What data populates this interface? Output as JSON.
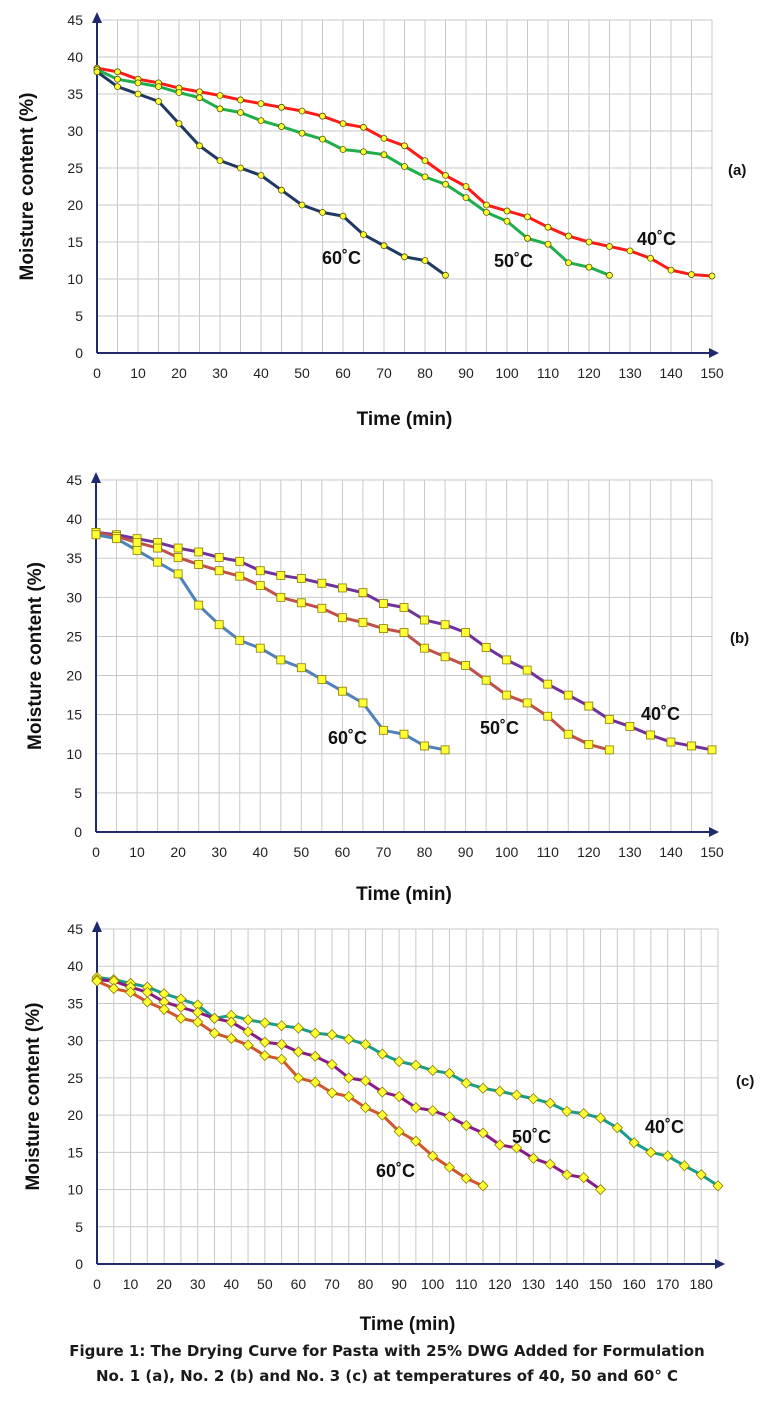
{
  "caption": {
    "line1": "Figure 1: The Drying Curve for Pasta with 25% DWG Added for Formulation",
    "line2": "No. 1 (a), No. 2 (b) and No. 3 (c) at temperatures of 40, 50 and 60° C"
  },
  "chart_data": [
    {
      "type": "line",
      "panel_label": "(a)",
      "xlabel": "Time (min)",
      "ylabel": "Moisture content (%)",
      "xlim": [
        0,
        150
      ],
      "ylim": [
        0,
        45
      ],
      "xticks": [
        0,
        10,
        20,
        30,
        40,
        50,
        60,
        70,
        80,
        90,
        100,
        110,
        120,
        130,
        140,
        150
      ],
      "yticks": [
        0,
        5,
        10,
        15,
        20,
        25,
        30,
        35,
        40,
        45
      ],
      "grid": true,
      "marker": "circle",
      "series": [
        {
          "name": "40˚C",
          "color": "#ff1a1a",
          "x": [
            0,
            5,
            10,
            15,
            20,
            25,
            30,
            35,
            40,
            45,
            50,
            55,
            60,
            65,
            70,
            75,
            80,
            85,
            90,
            95,
            100,
            105,
            110,
            115,
            120,
            125,
            130,
            135,
            140,
            145,
            150
          ],
          "y": [
            38.5,
            38,
            37,
            36.5,
            35.8,
            35.3,
            34.8,
            34.2,
            33.7,
            33.2,
            32.7,
            32,
            31,
            30.5,
            29,
            28,
            26,
            24,
            22.5,
            20,
            19.2,
            18.4,
            17,
            15.8,
            15,
            14.4,
            13.8,
            12.8,
            11.2,
            10.6,
            10.4
          ]
        },
        {
          "name": "50˚C",
          "color": "#1fae4b",
          "x": [
            0,
            5,
            10,
            15,
            20,
            25,
            30,
            35,
            40,
            45,
            50,
            55,
            60,
            65,
            70,
            75,
            80,
            85,
            90,
            95,
            100,
            105,
            110,
            115,
            120,
            125
          ],
          "y": [
            38.3,
            37,
            36.5,
            36,
            35.2,
            34.5,
            33,
            32.5,
            31.4,
            30.6,
            29.7,
            28.9,
            27.5,
            27.2,
            26.8,
            25.2,
            23.8,
            22.8,
            21,
            19,
            17.8,
            15.5,
            14.7,
            12.2,
            11.6,
            10.5
          ]
        },
        {
          "name": "60˚C",
          "color": "#1f3864",
          "x": [
            0,
            5,
            10,
            15,
            20,
            25,
            30,
            35,
            40,
            45,
            50,
            55,
            60,
            65,
            70,
            75,
            80,
            85
          ],
          "y": [
            38,
            36,
            35,
            34,
            31,
            28,
            26,
            25,
            24,
            22,
            20,
            19,
            18.5,
            16,
            14.5,
            13,
            12.5,
            10.5
          ]
        }
      ]
    },
    {
      "type": "line",
      "panel_label": "(b)",
      "xlabel": "Time (min)",
      "ylabel": "Moisture content (%)",
      "xlim": [
        0,
        150
      ],
      "ylim": [
        0,
        45
      ],
      "xticks": [
        0,
        10,
        20,
        30,
        40,
        50,
        60,
        70,
        80,
        90,
        100,
        110,
        120,
        130,
        140,
        150
      ],
      "yticks": [
        0,
        5,
        10,
        15,
        20,
        25,
        30,
        35,
        40,
        45
      ],
      "grid": true,
      "marker": "square",
      "series": [
        {
          "name": "40˚C",
          "color": "#7030a0",
          "x": [
            0,
            5,
            10,
            15,
            20,
            25,
            30,
            35,
            40,
            45,
            50,
            55,
            60,
            65,
            70,
            75,
            80,
            85,
            90,
            95,
            100,
            105,
            110,
            115,
            120,
            125,
            130,
            135,
            140,
            145,
            150
          ],
          "y": [
            38.3,
            38,
            37.5,
            37,
            36.3,
            35.8,
            35.1,
            34.6,
            33.4,
            32.8,
            32.4,
            31.8,
            31.2,
            30.6,
            29.2,
            28.7,
            27.1,
            26.5,
            25.5,
            23.6,
            22,
            20.7,
            18.9,
            17.5,
            16.1,
            14.4,
            13.5,
            12.4,
            11.5,
            11,
            10.5
          ]
        },
        {
          "name": "50˚C",
          "color": "#c0504d",
          "x": [
            0,
            5,
            10,
            15,
            20,
            25,
            30,
            35,
            40,
            45,
            50,
            55,
            60,
            65,
            70,
            75,
            80,
            85,
            90,
            95,
            100,
            105,
            110,
            115,
            120,
            125
          ],
          "y": [
            38.3,
            37.8,
            37,
            36.3,
            35.1,
            34.2,
            33.4,
            32.7,
            31.5,
            30,
            29.3,
            28.6,
            27.4,
            26.8,
            26,
            25.5,
            23.5,
            22.4,
            21.3,
            19.4,
            17.5,
            16.5,
            14.8,
            12.5,
            11.2,
            10.5
          ]
        },
        {
          "name": "60˚C",
          "color": "#4f81bd",
          "x": [
            0,
            5,
            10,
            15,
            20,
            25,
            30,
            35,
            40,
            45,
            50,
            55,
            60,
            65,
            70,
            75,
            80,
            85
          ],
          "y": [
            38,
            37.5,
            36,
            34.5,
            33,
            29,
            26.5,
            24.5,
            23.5,
            22,
            21,
            19.5,
            18,
            16.5,
            13,
            12.5,
            11,
            10.5
          ]
        }
      ]
    },
    {
      "type": "line",
      "panel_label": "(c)",
      "xlabel": "Time (min)",
      "ylabel": "Moisture content (%)",
      "xlim": [
        0,
        185
      ],
      "ylim": [
        0,
        45
      ],
      "xticks": [
        0,
        10,
        20,
        30,
        40,
        50,
        60,
        70,
        80,
        90,
        100,
        110,
        120,
        130,
        140,
        150,
        160,
        170,
        180
      ],
      "yticks": [
        0,
        5,
        10,
        15,
        20,
        25,
        30,
        35,
        40,
        45
      ],
      "grid": true,
      "marker": "diamond",
      "series": [
        {
          "name": "40˚C",
          "color": "#1a9c8c",
          "x": [
            0,
            5,
            10,
            15,
            20,
            25,
            30,
            35,
            40,
            45,
            50,
            55,
            60,
            65,
            70,
            75,
            80,
            85,
            90,
            95,
            100,
            105,
            110,
            115,
            120,
            125,
            130,
            135,
            140,
            145,
            150,
            155,
            160,
            165,
            170,
            175,
            180,
            185
          ],
          "y": [
            38.5,
            38.2,
            37.7,
            37.2,
            36.3,
            35.6,
            34.8,
            33,
            33.4,
            32.8,
            32.4,
            32,
            31.7,
            31,
            30.8,
            30.2,
            29.5,
            28.2,
            27.2,
            26.7,
            26,
            25.6,
            24.3,
            23.6,
            23.2,
            22.7,
            22.2,
            21.6,
            20.5,
            20.2,
            19.6,
            18.3,
            16.3,
            15,
            14.5,
            13.2,
            12,
            10.5
          ]
        },
        {
          "name": "50˚C",
          "color": "#8b1a89",
          "x": [
            0,
            5,
            10,
            15,
            20,
            25,
            30,
            35,
            40,
            45,
            50,
            55,
            60,
            65,
            70,
            75,
            80,
            85,
            90,
            95,
            100,
            105,
            110,
            115,
            120,
            125,
            130,
            135,
            140,
            145,
            150
          ],
          "y": [
            38.2,
            38,
            37.2,
            36.5,
            35.2,
            34.5,
            33.8,
            33,
            32.5,
            31.2,
            29.8,
            29.5,
            28.5,
            27.9,
            26.8,
            25,
            24.6,
            23.1,
            22.5,
            21,
            20.6,
            19.8,
            18.6,
            17.6,
            16,
            15.6,
            14.2,
            13.4,
            12,
            11.6,
            10
          ]
        },
        {
          "name": "60˚C",
          "color": "#d1562d",
          "x": [
            0,
            5,
            10,
            15,
            20,
            25,
            30,
            35,
            40,
            45,
            50,
            55,
            60,
            65,
            70,
            75,
            80,
            85,
            90,
            95,
            100,
            105,
            110,
            115
          ],
          "y": [
            38,
            37,
            36.5,
            35.2,
            34.2,
            33,
            32.5,
            31,
            30.3,
            29.4,
            28,
            27.5,
            25,
            24.4,
            23,
            22.5,
            21,
            20,
            17.8,
            16.5,
            14.5,
            13,
            11.5,
            10.5
          ]
        }
      ]
    }
  ]
}
